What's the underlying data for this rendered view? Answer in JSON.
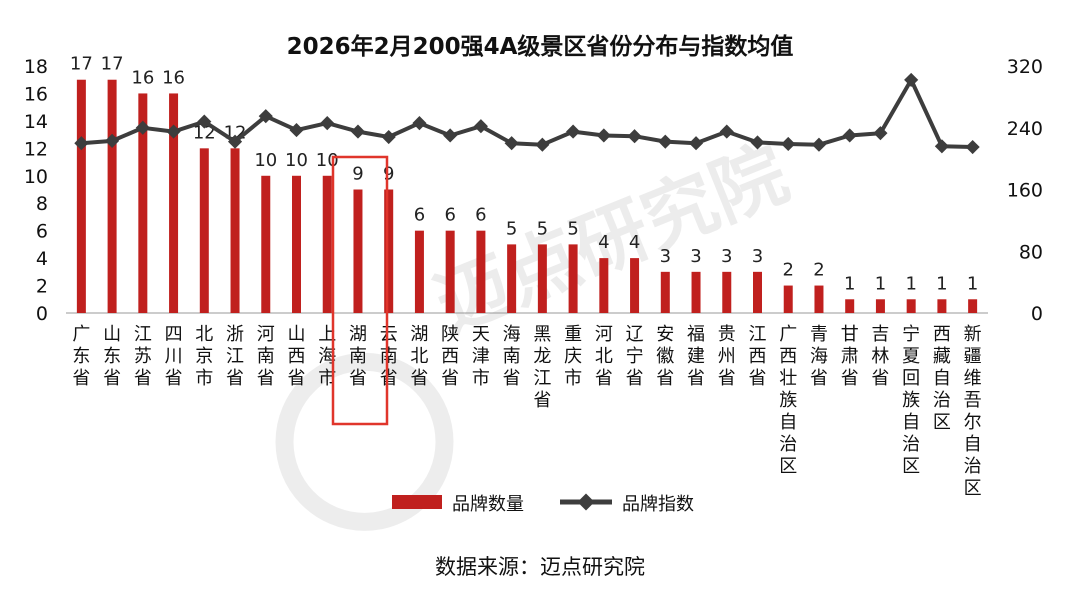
{
  "chart_data": {
    "type": "bar",
    "title": "2026年2月200强4A级景区省份分布与指数均值",
    "source": "数据来源：迈点研究院",
    "categories": [
      "广东省",
      "山东省",
      "江苏省",
      "四川省",
      "北京市",
      "浙江省",
      "河南省",
      "山西省",
      "上海市",
      "湖南省",
      "云南省",
      "湖北省",
      "陕西省",
      "天津市",
      "海南省",
      "黑龙江省",
      "重庆市",
      "河北省",
      "辽宁省",
      "安徽省",
      "福建省",
      "贵州省",
      "江西省",
      "广西壮族自治区",
      "青海省",
      "甘肃省",
      "吉林省",
      "宁夏回族自治区",
      "西藏自治区",
      "新疆维吾尔自治区"
    ],
    "series": [
      {
        "name": "品牌数量",
        "type": "bar",
        "axis": "left",
        "color": "#c0201e",
        "values": [
          17,
          17,
          16,
          16,
          12,
          12,
          10,
          10,
          10,
          9,
          9,
          6,
          6,
          6,
          5,
          5,
          5,
          4,
          4,
          3,
          3,
          3,
          3,
          2,
          2,
          1,
          1,
          1,
          1,
          1
        ]
      },
      {
        "name": "品牌指数",
        "type": "line",
        "axis": "right",
        "color": "#3d3d3d",
        "values": [
          220,
          223,
          240,
          235,
          248,
          222,
          255,
          237,
          246,
          235,
          228,
          246,
          230,
          242,
          220,
          218,
          235,
          230,
          229,
          222,
          220,
          235,
          221,
          219,
          218,
          230,
          233,
          302,
          216,
          215
        ]
      }
    ],
    "y_left": {
      "min": 0,
      "max": 18,
      "ticks": [
        0,
        2,
        4,
        6,
        8,
        10,
        12,
        14,
        16,
        18
      ]
    },
    "y_right": {
      "min": 0,
      "max": 320,
      "ticks": [
        0,
        80,
        160,
        240,
        320
      ]
    },
    "legend_position": "bottom",
    "highlight": {
      "categories": [
        "湖南省",
        "云南省"
      ],
      "color": "#e0352b"
    },
    "watermark": "迈点研究院"
  }
}
